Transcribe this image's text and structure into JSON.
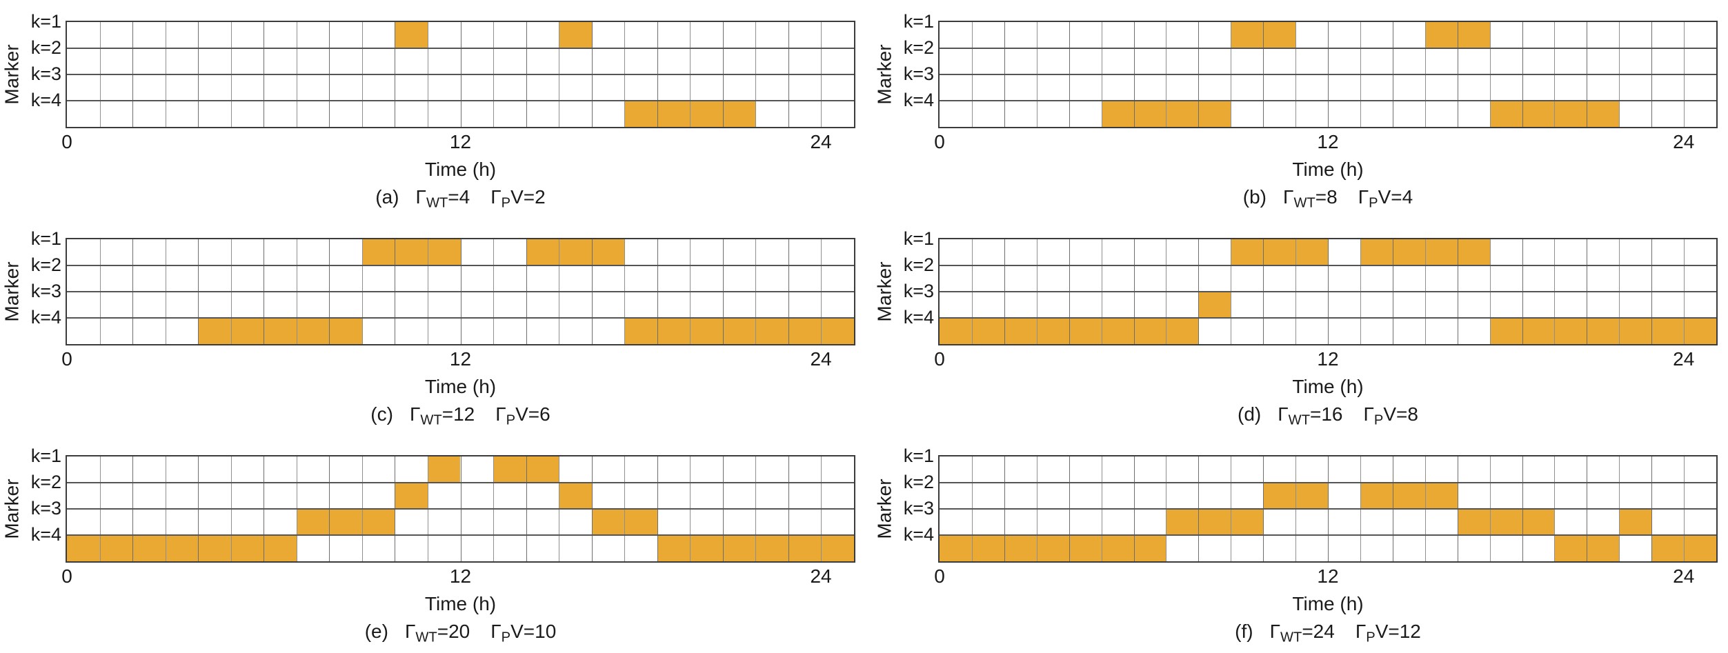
{
  "figure": {
    "background": "#ffffff",
    "n_subplots": 6
  },
  "chart_data": {
    "type": "heatmap",
    "description": "Six binary schedule grids (24 one-hour cells by 4 marker rows); orange cells mark active hours for each marker row under different uncertainty budgets.",
    "x_axis": {
      "label": "Time (h)",
      "range": [
        0,
        24
      ],
      "ticks": [
        0,
        12,
        24
      ],
      "tick_labels": [
        "0",
        "12",
        "24"
      ],
      "n_cols": 24,
      "cell_hours": 1
    },
    "y_axis": {
      "label": "Marker",
      "rows": [
        "k=1",
        "k=2",
        "k=3",
        "k=4"
      ]
    },
    "grid": true,
    "fill_color": "#EAA933",
    "line_color": "#8f8f8f",
    "band_line_color": "#555555",
    "border_color": "#3b3b3b",
    "symbols": {
      "gamma": "Γ",
      "wt_sub": "WT",
      "pv_sub": "P"
    },
    "subplots": [
      {
        "id": "a",
        "label": "(a)",
        "gamma_wt": 4,
        "gamma_pv": 2,
        "wt_text": "=4",
        "pv_text": "V=2",
        "filled_intervals": {
          "k=1": [
            [
              10,
              11
            ],
            [
              15,
              16
            ]
          ],
          "k=2": [],
          "k=3": [],
          "k=4": [
            [
              17,
              21
            ]
          ]
        }
      },
      {
        "id": "b",
        "label": "(b)",
        "gamma_wt": 8,
        "gamma_pv": 4,
        "wt_text": "=8",
        "pv_text": "V=4",
        "filled_intervals": {
          "k=1": [
            [
              9,
              11
            ],
            [
              15,
              17
            ]
          ],
          "k=2": [],
          "k=3": [],
          "k=4": [
            [
              5,
              9
            ],
            [
              17,
              21
            ]
          ]
        }
      },
      {
        "id": "c",
        "label": "(c)",
        "gamma_wt": 12,
        "gamma_pv": 6,
        "wt_text": "=12",
        "pv_text": "V=6",
        "filled_intervals": {
          "k=1": [
            [
              9,
              12
            ],
            [
              14,
              17
            ]
          ],
          "k=2": [],
          "k=3": [],
          "k=4": [
            [
              4,
              9
            ],
            [
              17,
              24
            ]
          ]
        }
      },
      {
        "id": "d",
        "label": "(d)",
        "gamma_wt": 16,
        "gamma_pv": 8,
        "wt_text": "=16",
        "pv_text": "V=8",
        "filled_intervals": {
          "k=1": [
            [
              9,
              12
            ],
            [
              13,
              17
            ]
          ],
          "k=2": [],
          "k=3": [
            [
              8,
              9
            ]
          ],
          "k=4": [
            [
              0,
              8
            ],
            [
              17,
              24
            ]
          ]
        }
      },
      {
        "id": "e",
        "label": "(e)",
        "gamma_wt": 20,
        "gamma_pv": 10,
        "wt_text": "=20",
        "pv_text": "V=10",
        "filled_intervals": {
          "k=1": [
            [
              11,
              12
            ],
            [
              13,
              15
            ]
          ],
          "k=2": [
            [
              10,
              11
            ],
            [
              15,
              16
            ]
          ],
          "k=3": [
            [
              7,
              10
            ],
            [
              16,
              18
            ]
          ],
          "k=4": [
            [
              0,
              7
            ],
            [
              18,
              24
            ]
          ]
        }
      },
      {
        "id": "f",
        "label": "(f)",
        "gamma_wt": 24,
        "gamma_pv": 12,
        "wt_text": "=24",
        "pv_text": "V=12",
        "filled_intervals": {
          "k=1": [],
          "k=2": [
            [
              10,
              12
            ],
            [
              13,
              16
            ]
          ],
          "k=3": [
            [
              7,
              10
            ],
            [
              16,
              19
            ],
            [
              21,
              22
            ]
          ],
          "k=4": [
            [
              0,
              7
            ],
            [
              19,
              21
            ],
            [
              22,
              24
            ]
          ]
        }
      }
    ]
  }
}
